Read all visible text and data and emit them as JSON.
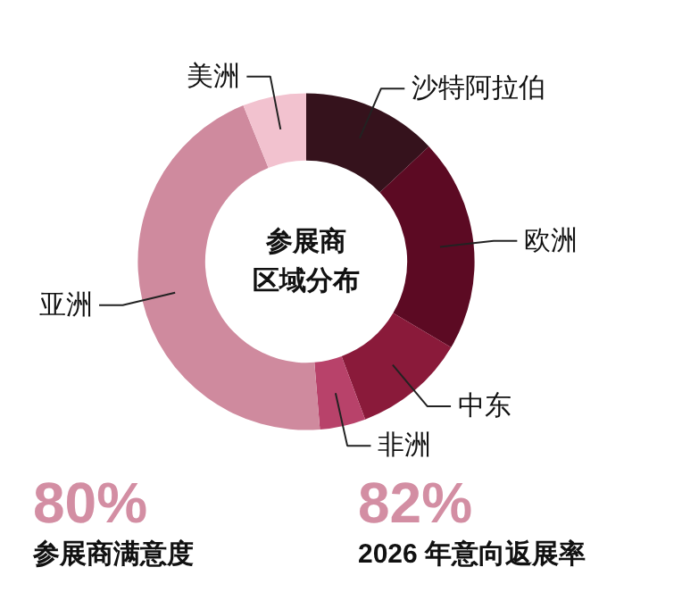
{
  "chart_data": {
    "type": "donut",
    "title": "参展商区域分布",
    "categories": [
      "沙特阿拉伯",
      "欧洲",
      "中东",
      "非洲",
      "亚洲",
      "美洲"
    ],
    "values": [
      13,
      20.5,
      10.8,
      4.4,
      45.2,
      6.1
    ],
    "colors": [
      "#35121c",
      "#5c0a23",
      "#8a1a3a",
      "#b8426a",
      "#cf8a9e",
      "#f2c2cf"
    ],
    "annotations": [
      "80%",
      "参展商满意度",
      "82%",
      "2026 年意向返展率"
    ]
  }
}
